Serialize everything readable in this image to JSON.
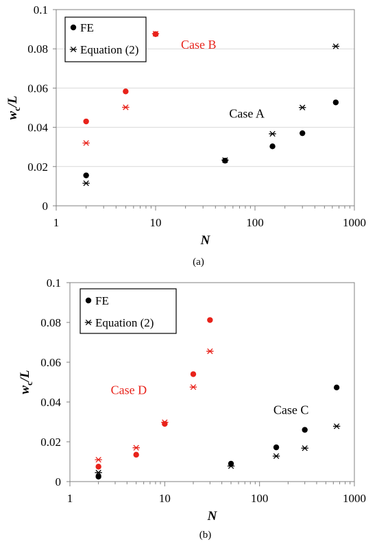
{
  "colors": {
    "black": "#000000",
    "red": "#e8221a",
    "grid": "#d9d9d9",
    "axis": "#808080"
  },
  "chart_data": [
    {
      "type": "scatter",
      "caption": "(a)",
      "xlabel": "N",
      "ylabel_main": "w",
      "ylabel_sub": "c",
      "ylabel_rest": "/L",
      "xscale": "log",
      "xlim": [
        1,
        1000
      ],
      "ylim": [
        0,
        0.1
      ],
      "xticks": [
        1,
        10,
        100,
        1000
      ],
      "xtick_labels": [
        "1",
        "10",
        "100",
        "1000"
      ],
      "yticks": [
        0,
        0.02,
        0.04,
        0.06,
        0.08,
        0.1
      ],
      "ytick_labels": [
        "0",
        "0.02",
        "0.04",
        "0.06",
        "0.08",
        "0.1"
      ],
      "grid": "horizontal",
      "legend_position": "top-left",
      "legend": [
        {
          "label": "FE",
          "marker": "dot"
        },
        {
          "label": "Equation (2)",
          "marker": "star"
        }
      ],
      "annotations": [
        {
          "text": "Case B",
          "x": 18,
          "y": 0.08,
          "color": "red"
        },
        {
          "text": "Case A",
          "x": 55,
          "y": 0.045,
          "color": "black"
        }
      ],
      "series": [
        {
          "name": "FE",
          "case": "Case A",
          "marker": "dot",
          "color": "black",
          "x": [
            2,
            50,
            150,
            300,
            650
          ],
          "y": [
            0.0155,
            0.023,
            0.0303,
            0.037,
            0.0527
          ]
        },
        {
          "name": "Equation (2)",
          "case": "Case A",
          "marker": "star",
          "color": "black",
          "x": [
            2,
            50,
            150,
            300,
            650
          ],
          "y": [
            0.0115,
            0.0233,
            0.0367,
            0.0501,
            0.0813
          ]
        },
        {
          "name": "FE",
          "case": "Case B",
          "marker": "dot",
          "color": "red",
          "x": [
            2,
            5,
            10
          ],
          "y": [
            0.043,
            0.0583,
            0.0875
          ]
        },
        {
          "name": "Equation (2)",
          "case": "Case B",
          "marker": "star",
          "color": "red",
          "x": [
            2,
            5,
            10
          ],
          "y": [
            0.032,
            0.0502,
            0.0877
          ]
        }
      ]
    },
    {
      "type": "scatter",
      "caption": "(b)",
      "xlabel": "N",
      "ylabel_main": "w",
      "ylabel_sub": "c",
      "ylabel_rest": "/L",
      "xscale": "log",
      "xlim": [
        1,
        1000
      ],
      "ylim": [
        0,
        0.1
      ],
      "xticks": [
        1,
        10,
        100,
        1000
      ],
      "xtick_labels": [
        "1",
        "10",
        "100",
        "1000"
      ],
      "yticks": [
        0,
        0.02,
        0.04,
        0.06,
        0.08,
        0.1
      ],
      "ytick_labels": [
        "0",
        "0.02",
        "0.04",
        "0.06",
        "0.08",
        "0.1"
      ],
      "grid": "none",
      "legend_position": "top-left",
      "legend": [
        {
          "label": "FE",
          "marker": "dot"
        },
        {
          "label": "Equation (2)",
          "marker": "star"
        }
      ],
      "annotations": [
        {
          "text": "Case D",
          "x": 2.7,
          "y": 0.044,
          "color": "red"
        },
        {
          "text": "Case C",
          "x": 140,
          "y": 0.034,
          "color": "black"
        }
      ],
      "series": [
        {
          "name": "FE",
          "case": "Case C",
          "marker": "dot",
          "color": "black",
          "x": [
            2,
            50,
            150,
            300,
            650
          ],
          "y": [
            0.0025,
            0.009,
            0.0172,
            0.026,
            0.0473
          ]
        },
        {
          "name": "Equation (2)",
          "case": "Case C",
          "marker": "star",
          "color": "black",
          "x": [
            2,
            50,
            150,
            300,
            650
          ],
          "y": [
            0.0045,
            0.0078,
            0.0128,
            0.0168,
            0.0278
          ]
        },
        {
          "name": "FE",
          "case": "Case D",
          "marker": "dot",
          "color": "red",
          "x": [
            2,
            5,
            10,
            20,
            30
          ],
          "y": [
            0.0075,
            0.0135,
            0.029,
            0.054,
            0.0812
          ]
        },
        {
          "name": "Equation (2)",
          "case": "Case D",
          "marker": "star",
          "color": "red",
          "x": [
            2,
            5,
            10,
            20,
            30
          ],
          "y": [
            0.011,
            0.017,
            0.0298,
            0.0475,
            0.0655
          ]
        }
      ]
    }
  ]
}
